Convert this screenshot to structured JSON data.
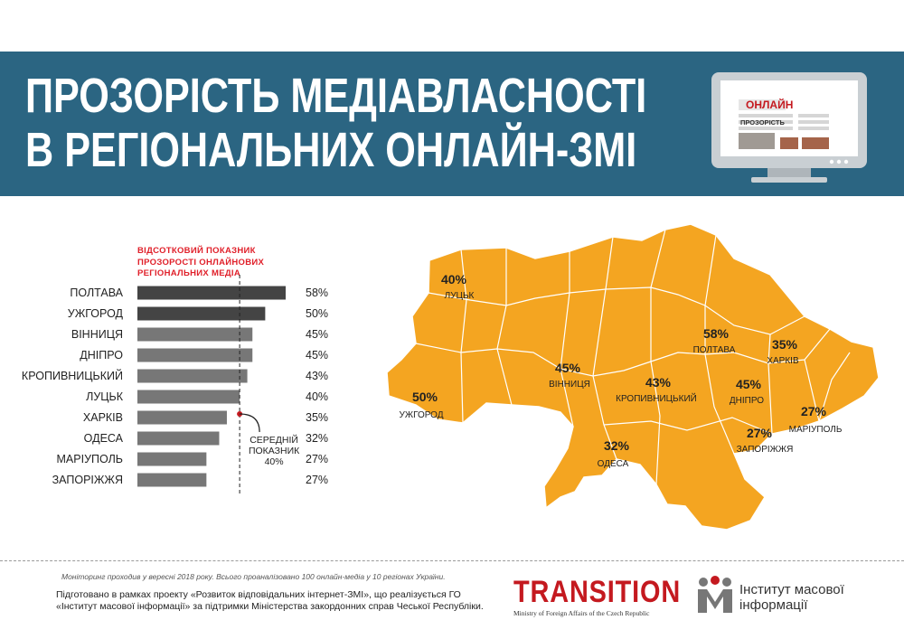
{
  "header": {
    "title_line1": "ПРОЗОРІСТЬ МЕДІАВЛАСНОСТІ",
    "title_line2": "В РЕГІОНАЛЬНИХ ОНЛАЙН-ЗМІ",
    "monitor_tag": "ОНЛАЙН",
    "monitor_label": "ПРОЗОРІСТЬ"
  },
  "chart_label": {
    "line1": "ВІДСОТКОВИЙ ПОКАЗНИК",
    "line2": "ПРОЗОРОСТІ ОНЛАЙНОВИХ",
    "line3": "РЕГІОНАЛЬНИХ МЕДІА"
  },
  "chart_data": {
    "type": "bar",
    "orientation": "horizontal",
    "categories": [
      "ПОЛТАВА",
      "УЖГОРОД",
      "ВІННИЦЯ",
      "ДНІПРО",
      "КРОПИВНИЦЬКИЙ",
      "ЛУЦЬК",
      "ХАРКІВ",
      "ОДЕСА",
      "МАРІУПОЛЬ",
      "ЗАПОРІЖЖЯ"
    ],
    "values": [
      58,
      50,
      45,
      45,
      43,
      40,
      35,
      32,
      27,
      27
    ],
    "value_labels": [
      "58%",
      "50%",
      "45%",
      "45%",
      "43%",
      "40%",
      "35%",
      "32%",
      "27%",
      "27%"
    ],
    "xlim": [
      0,
      58
    ],
    "average": 40,
    "average_label": [
      "СЕРЕДНІЙ",
      "ПОКАЗНИК",
      "40%"
    ],
    "colors": {
      "top": "#444444",
      "rest": "#777777",
      "avg_marker": "#c4191f"
    }
  },
  "map": {
    "fill": "#f4a521",
    "labels": [
      {
        "value": "40%",
        "city": "ЛУЦЬК"
      },
      {
        "value": "50%",
        "city": "УЖГОРОД"
      },
      {
        "value": "45%",
        "city": "ВІННИЦЯ"
      },
      {
        "value": "43%",
        "city": "КРОПИВНИЦЬКИЙ"
      },
      {
        "value": "58%",
        "city": "ПОЛТАВА"
      },
      {
        "value": "35%",
        "city": "ХАРКІВ"
      },
      {
        "value": "45%",
        "city": "ДНІПРО"
      },
      {
        "value": "27%",
        "city": "МАРІУПОЛЬ"
      },
      {
        "value": "27%",
        "city": "ЗАПОРІЖЖЯ"
      },
      {
        "value": "32%",
        "city": "ОДЕСА"
      }
    ]
  },
  "footer": {
    "note": "Моніторинг проходив у вересні 2018 року. Всього проаналізовано 100 онлайн-медіа у 10 регіонах України.",
    "text": "Підготовано в рамках проекту «Розвиток відповідальних інтернет-ЗМІ», що реалізується ГО «Інститут масової інформації» за підтримки Міністерства закордонних справ Чеської Республіки.",
    "transition_logo": "TRANSITION",
    "transition_sub": "Ministry of Foreign Affairs of the Czech Republic",
    "imi_line1": "Інститут масової",
    "imi_line2": "інформації"
  }
}
